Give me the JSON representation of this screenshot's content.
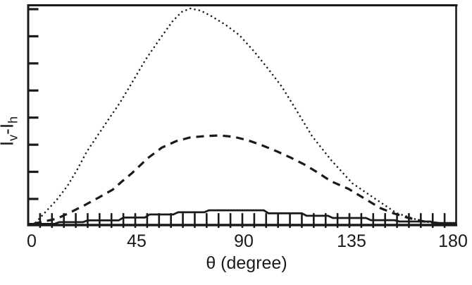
{
  "figure": {
    "background_color": "#ffffff",
    "ink_color": "#1a1a1a"
  },
  "chart_data": {
    "type": "line",
    "title": "",
    "xlabel": "θ (degree)",
    "ylabel": "Iv-Ih",
    "ylabel_parts": {
      "base1": "I",
      "sub1": "v",
      "base2": "-I",
      "sub2": "h"
    },
    "xlim": [
      0,
      180
    ],
    "ylim": [
      0,
      1.0
    ],
    "x_ticks": [
      0,
      45,
      90,
      135,
      180
    ],
    "x_tick_labels": [
      "0",
      "45",
      "90",
      "135",
      "180"
    ],
    "y_axis": {
      "labeled_values": false,
      "visible_tick_count": 8,
      "units": "arbitrary intensity difference"
    },
    "grid": false,
    "legend": false,
    "series": [
      {
        "name": "dotted-curve",
        "line_style": "dotted",
        "points": [
          [
            3,
            0.006
          ],
          [
            7.4,
            0.058
          ],
          [
            11.8,
            0.109
          ],
          [
            16.6,
            0.177
          ],
          [
            20.7,
            0.251
          ],
          [
            24.6,
            0.331
          ],
          [
            29.6,
            0.412
          ],
          [
            34,
            0.482
          ],
          [
            38.5,
            0.553
          ],
          [
            43.5,
            0.643
          ],
          [
            49.4,
            0.752
          ],
          [
            55.4,
            0.846
          ],
          [
            60.7,
            0.926
          ],
          [
            64.5,
            0.968
          ],
          [
            68.1,
            0.984
          ],
          [
            72.5,
            0.974
          ],
          [
            77,
            0.949
          ],
          [
            82.9,
            0.91
          ],
          [
            88.8,
            0.862
          ],
          [
            94.7,
            0.791
          ],
          [
            100.7,
            0.711
          ],
          [
            106.6,
            0.627
          ],
          [
            112.5,
            0.524
          ],
          [
            119.3,
            0.402
          ],
          [
            127.3,
            0.293
          ],
          [
            136.2,
            0.187
          ],
          [
            145.1,
            0.122
          ],
          [
            154.8,
            0.051
          ],
          [
            162.8,
            0.023
          ],
          [
            171,
            0.003
          ]
        ]
      },
      {
        "name": "dashed-curve",
        "line_style": "dashed",
        "points": [
          [
            2.4,
            0.003
          ],
          [
            12.1,
            0.026
          ],
          [
            17.8,
            0.055
          ],
          [
            23.7,
            0.087
          ],
          [
            29.6,
            0.122
          ],
          [
            35.5,
            0.158
          ],
          [
            39.5,
            0.196
          ],
          [
            43.5,
            0.232
          ],
          [
            50.3,
            0.302
          ],
          [
            56.2,
            0.35
          ],
          [
            62.2,
            0.379
          ],
          [
            68.1,
            0.396
          ],
          [
            74,
            0.402
          ],
          [
            80.5,
            0.405
          ],
          [
            86.4,
            0.399
          ],
          [
            92.4,
            0.383
          ],
          [
            98.3,
            0.36
          ],
          [
            104.2,
            0.334
          ],
          [
            110.1,
            0.305
          ],
          [
            116,
            0.273
          ],
          [
            121.4,
            0.238
          ],
          [
            127.3,
            0.196
          ],
          [
            134.7,
            0.161
          ],
          [
            142.1,
            0.113
          ],
          [
            148,
            0.074
          ],
          [
            153.3,
            0.051
          ],
          [
            159.8,
            0.029
          ],
          [
            166.4,
            0.013
          ],
          [
            172.3,
            0.006
          ]
        ]
      },
      {
        "name": "solid-hatched-curve",
        "line_style": "solid",
        "points": [
          [
            0,
            0.002
          ],
          [
            11,
            0.002
          ],
          [
            13,
            0.01
          ],
          [
            23,
            0.01
          ],
          [
            25,
            0.018
          ],
          [
            38,
            0.018
          ],
          [
            40,
            0.031
          ],
          [
            49,
            0.031
          ],
          [
            51,
            0.045
          ],
          [
            61,
            0.045
          ],
          [
            63,
            0.055
          ],
          [
            74,
            0.055
          ],
          [
            76,
            0.064
          ],
          [
            99,
            0.064
          ],
          [
            101,
            0.05
          ],
          [
            115,
            0.05
          ],
          [
            117,
            0.039
          ],
          [
            126,
            0.039
          ],
          [
            128,
            0.029
          ],
          [
            142,
            0.029
          ],
          [
            144,
            0.019
          ],
          [
            154,
            0.019
          ],
          [
            156,
            0.013
          ],
          [
            169,
            0.013
          ],
          [
            171,
            0.006
          ],
          [
            180,
            0.006
          ]
        ],
        "hatch_ticks": {
          "theta_start": 5,
          "theta_end": 175,
          "theta_step": 5,
          "value_top": 0.051,
          "value_bottom": -0.016
        }
      }
    ]
  }
}
